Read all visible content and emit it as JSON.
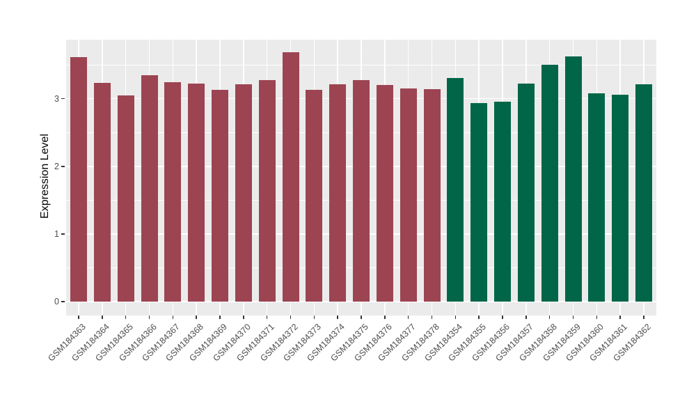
{
  "figure": {
    "background_color": "#FFFFFF",
    "panel_background_color": "#EBEBEB",
    "gridline_color": "#FFFFFF",
    "tick_text_color": "#4D4D4D",
    "axis_title_color": "#000000"
  },
  "y_axis": {
    "title": "Expression Level",
    "tick_labels": [
      "0",
      "1",
      "2",
      "3"
    ]
  },
  "chart_data": {
    "type": "bar",
    "title": "",
    "xlabel": "",
    "ylabel": "Expression Level",
    "ylim": [
      0,
      3.87
    ],
    "yticks": [
      0,
      1,
      2,
      3
    ],
    "yticks_minor": [
      0.5,
      1.5,
      2.5,
      3.5
    ],
    "grid": "white major and minor on gray panel",
    "legend_position": "none",
    "categories": [
      "GSM184363",
      "GSM184364",
      "GSM184365",
      "GSM184366",
      "GSM184367",
      "GSM184368",
      "GSM184369",
      "GSM184370",
      "GSM184371",
      "GSM184372",
      "GSM184373",
      "GSM184374",
      "GSM184375",
      "GSM184376",
      "GSM184377",
      "GSM184378",
      "GSM184354",
      "GSM184355",
      "GSM184356",
      "GSM184357",
      "GSM184358",
      "GSM184359",
      "GSM184360",
      "GSM184361",
      "GSM184362"
    ],
    "values": [
      3.62,
      3.23,
      3.05,
      3.35,
      3.24,
      3.22,
      3.13,
      3.21,
      3.28,
      3.69,
      3.13,
      3.21,
      3.27,
      3.2,
      3.15,
      3.14,
      3.31,
      2.94,
      2.96,
      3.22,
      3.5,
      3.63,
      3.08,
      3.06,
      3.21
    ],
    "bar_groups": [
      "crimson",
      "crimson",
      "crimson",
      "crimson",
      "crimson",
      "crimson",
      "crimson",
      "crimson",
      "crimson",
      "crimson",
      "crimson",
      "crimson",
      "crimson",
      "crimson",
      "crimson",
      "crimson",
      "green",
      "green",
      "green",
      "green",
      "green",
      "green",
      "green",
      "green",
      "green"
    ],
    "group_colors": {
      "crimson": "#9C4452",
      "green": "#006647"
    }
  }
}
